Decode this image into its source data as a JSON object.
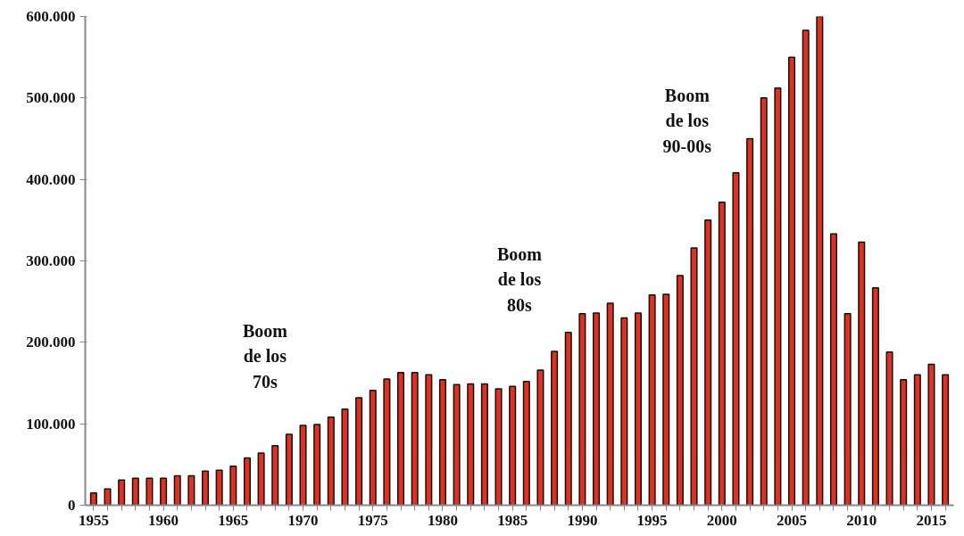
{
  "chart_data": {
    "type": "bar",
    "x": [
      1955,
      1956,
      1957,
      1958,
      1959,
      1960,
      1961,
      1962,
      1963,
      1964,
      1965,
      1966,
      1967,
      1968,
      1969,
      1970,
      1971,
      1972,
      1973,
      1974,
      1975,
      1976,
      1977,
      1978,
      1979,
      1980,
      1981,
      1982,
      1983,
      1984,
      1985,
      1986,
      1987,
      1988,
      1989,
      1990,
      1991,
      1992,
      1993,
      1994,
      1995,
      1996,
      1997,
      1998,
      1999,
      2000,
      2001,
      2002,
      2003,
      2004,
      2005,
      2006,
      2007,
      2008,
      2009,
      2010,
      2011,
      2012,
      2013,
      2014,
      2015,
      2016
    ],
    "values": [
      15000,
      20000,
      31000,
      33000,
      33000,
      33000,
      36000,
      36000,
      42000,
      43000,
      48000,
      58000,
      64000,
      73000,
      87000,
      98000,
      99000,
      108000,
      118000,
      132000,
      141000,
      155000,
      163000,
      163000,
      160000,
      154000,
      148000,
      149000,
      149000,
      143000,
      146000,
      152000,
      166000,
      189000,
      212000,
      235000,
      236000,
      248000,
      230000,
      236000,
      258000,
      259000,
      282000,
      316000,
      350000,
      372000,
      408000,
      450000,
      500000,
      512000,
      550000,
      583000,
      600000,
      333000,
      235000,
      323000,
      267000,
      188000,
      154000,
      160000,
      173000,
      160000
    ],
    "color": "#e0301e",
    "xlim": [
      1954.4,
      2016.6
    ],
    "xticks": [
      1955,
      1960,
      1965,
      1970,
      1975,
      1980,
      1985,
      1990,
      1995,
      2000,
      2005,
      2010,
      2015
    ],
    "ylim": [
      0,
      600000
    ],
    "yticks": [
      {
        "value": 0,
        "label": "0"
      },
      {
        "value": 100000,
        "label": "100.000"
      },
      {
        "value": 200000,
        "label": "200.000"
      },
      {
        "value": 300000,
        "label": "300.000"
      },
      {
        "value": 400000,
        "label": "400.000"
      },
      {
        "value": 500000,
        "label": "500.000"
      },
      {
        "value": 600000,
        "label": "600.000"
      }
    ],
    "grid": false,
    "annotations": [
      "Boom\nde los\n70s",
      "Boom\nde los\n80s",
      "Boom\nde los\n90-00s"
    ]
  }
}
